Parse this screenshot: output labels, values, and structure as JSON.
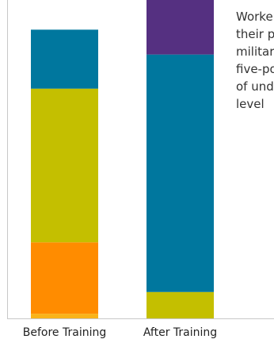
{
  "chart_data": {
    "type": "bar",
    "stacked": true,
    "categories": [
      "Before Training",
      "After Training"
    ],
    "segments": [
      [
        {
          "value": 1.5,
          "color": "#F9B31A"
        },
        {
          "value": 23.0,
          "color": "#FF8C00"
        },
        {
          "value": 49.5,
          "color": "#C4BF00"
        },
        {
          "value": 19.0,
          "color": "#00779E"
        }
      ],
      [
        {
          "value": 8.5,
          "color": "#C4BF00"
        },
        {
          "value": 76.5,
          "color": "#00779E"
        },
        {
          "value": 19.0,
          "color": "#553081"
        }
      ]
    ],
    "ylim": [
      0,
      100
    ]
  },
  "caption": {
    "lines": [
      "Workers rated",
      "their proficiency on",
      "military skills using a",
      "five-point scale",
      "of understanding",
      "level"
    ]
  }
}
